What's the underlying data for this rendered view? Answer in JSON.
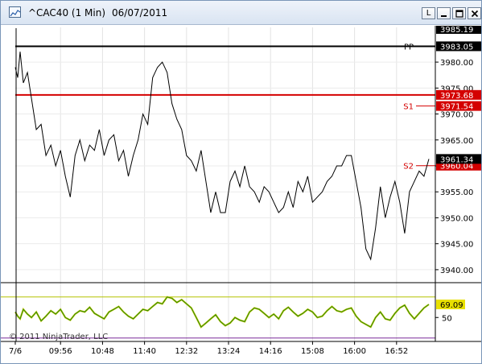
{
  "window": {
    "symbol": "^CAC40 (1 Min)",
    "date": "06/07/2011",
    "buttons": {
      "l": "L"
    }
  },
  "chart_data": {
    "type": "line",
    "title": "^CAC40 (1 Min)  06/07/2011",
    "y_ticks": [
      3980.0,
      3975.0,
      3970.0,
      3965.0,
      3960.0,
      3955.0,
      3950.0,
      3945.0,
      3940.0
    ],
    "y_tick_labels": [
      "3980.00",
      "3975.00",
      "3970.00",
      "3965.00",
      "3960.00",
      "3955.00",
      "3950.00",
      "3945.00",
      "3940.00"
    ],
    "ylim": [
      3937.5,
      3987
    ],
    "x_tick_labels": [
      "7/6",
      "09:56",
      "10:48",
      "11:40",
      "12:32",
      "13:24",
      "14:16",
      "15:08",
      "16:00",
      "16:52"
    ],
    "x_tick_minutes": [
      540,
      596,
      648,
      700,
      752,
      804,
      856,
      908,
      960,
      1012
    ],
    "xlim_minutes": [
      540,
      1060
    ],
    "levels": [
      {
        "name": "PP",
        "value": 3983.05,
        "label": "3983.05",
        "color": "#000000"
      },
      {
        "name": "",
        "value": 3973.68,
        "label": "3973.68",
        "color": "#d40000"
      },
      {
        "name": "S1",
        "value": 3971.54,
        "label": "3971.54",
        "color": "#d40000"
      },
      {
        "name": "S2",
        "value": 3960.04,
        "label": "3960.04",
        "color": "#d40000"
      }
    ],
    "axis_top_label": "3985.19",
    "last_price": {
      "value": 3961.34,
      "label": "3961.34"
    },
    "series": [
      {
        "color": "#000000",
        "x": [
          540,
          543,
          546,
          550,
          555,
          560,
          566,
          572,
          578,
          584,
          590,
          596,
          602,
          608,
          614,
          620,
          626,
          632,
          638,
          644,
          650,
          656,
          662,
          668,
          674,
          680,
          686,
          692,
          698,
          704,
          710,
          716,
          722,
          728,
          734,
          740,
          746,
          752,
          758,
          764,
          770,
          776,
          782,
          788,
          794,
          800,
          806,
          812,
          818,
          824,
          830,
          836,
          842,
          848,
          854,
          860,
          866,
          872,
          878,
          884,
          890,
          896,
          902,
          908,
          914,
          920,
          926,
          932,
          938,
          944,
          950,
          956,
          962,
          968,
          974,
          980,
          986,
          992,
          998,
          1004,
          1010,
          1016,
          1022,
          1028,
          1034,
          1040,
          1046,
          1052
        ],
        "values": [
          3979,
          3977,
          3982,
          3976,
          3978,
          3973,
          3967,
          3968,
          3962,
          3964,
          3960,
          3963,
          3958,
          3954,
          3962,
          3965,
          3961,
          3964,
          3963,
          3967,
          3962,
          3965,
          3966,
          3961,
          3963,
          3958,
          3962,
          3965,
          3970,
          3968,
          3977,
          3979,
          3980,
          3978,
          3972,
          3969,
          3967,
          3962,
          3961,
          3959,
          3963,
          3957,
          3951,
          3955,
          3951,
          3951,
          3957,
          3959,
          3956,
          3960,
          3956,
          3955,
          3953,
          3956,
          3955,
          3953,
          3951,
          3952,
          3955,
          3952,
          3957,
          3955,
          3958,
          3953,
          3954,
          3955,
          3957,
          3958,
          3960,
          3960,
          3962,
          3962,
          3957,
          3952,
          3944,
          3942,
          3948,
          3956,
          3950,
          3954,
          3957,
          3953,
          3947,
          3955,
          3957,
          3959,
          3958,
          3961.34
        ]
      }
    ],
    "indicator": {
      "last": {
        "value": 69.09,
        "label": "69.09"
      },
      "y_ticks": [
        50
      ],
      "y_tick_labels": [
        "50"
      ],
      "ylim": [
        15,
        95
      ],
      "levels": [
        {
          "value": 80,
          "color": "#b5c400"
        },
        {
          "value": 20,
          "color": "#7a2a9a"
        }
      ],
      "series": {
        "color": "#2a8a00",
        "values": [
          58,
          52,
          48,
          62,
          55,
          50,
          58,
          45,
          52,
          60,
          55,
          62,
          50,
          46,
          55,
          60,
          58,
          65,
          56,
          52,
          48,
          58,
          62,
          66,
          58,
          52,
          48,
          55,
          62,
          60,
          66,
          72,
          70,
          80,
          78,
          72,
          76,
          70,
          64,
          50,
          36,
          42,
          48,
          54,
          44,
          38,
          42,
          50,
          46,
          44,
          58,
          64,
          62,
          56,
          50,
          55,
          48,
          60,
          65,
          58,
          52,
          56,
          62,
          58,
          50,
          52,
          60,
          66,
          60,
          58,
          62,
          64,
          52,
          44,
          40,
          36,
          50,
          58,
          48,
          46,
          56,
          64,
          68,
          56,
          48,
          56,
          64,
          69.09
        ]
      }
    },
    "copyright": "© 2011 NinjaTrader, LLC"
  }
}
